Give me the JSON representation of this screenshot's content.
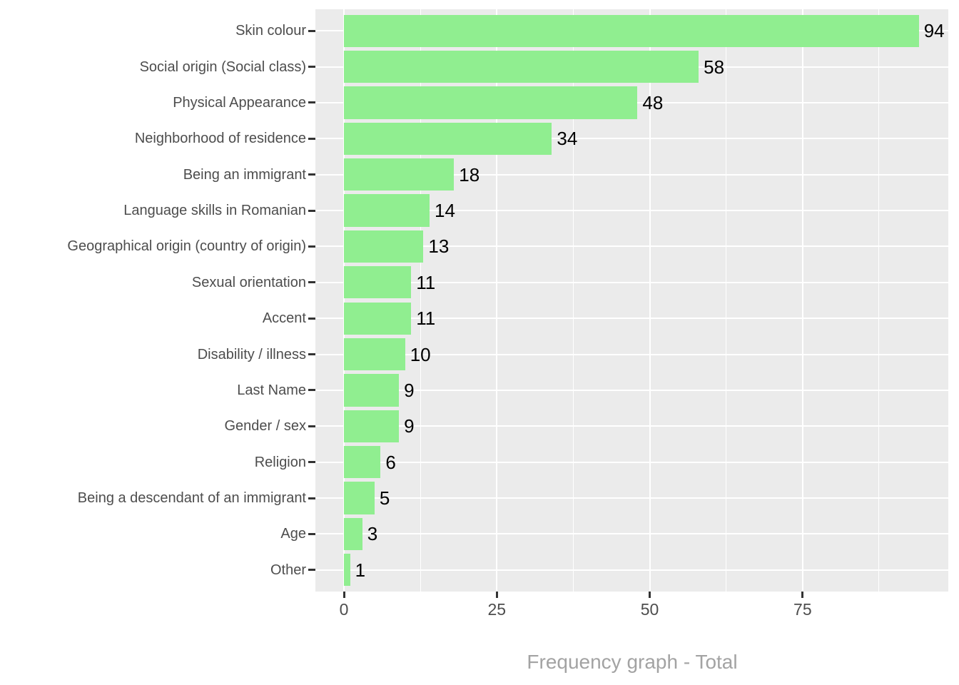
{
  "chart_data": {
    "type": "bar",
    "orientation": "horizontal",
    "title": "Frequency graph - Total",
    "categories": [
      "Skin colour",
      "Social origin (Social class)",
      "Physical Appearance",
      "Neighborhood of residence",
      "Being an immigrant",
      "Language skills in Romanian",
      "Geographical origin (country of origin)",
      "Sexual orientation",
      "Accent",
      "Disability / illness",
      "Last Name",
      "Gender / sex",
      "Religion",
      "Being a descendant of an immigrant",
      "Age",
      "Other"
    ],
    "values": [
      94,
      58,
      48,
      34,
      18,
      14,
      13,
      11,
      11,
      10,
      9,
      9,
      6,
      5,
      3,
      1
    ],
    "value_labels": [
      "94",
      "58",
      "48",
      "34",
      "18",
      "14",
      "13",
      "11",
      "11",
      "10",
      "9",
      "9",
      "6",
      "5",
      "3",
      "1"
    ],
    "xlabel": "Frequency graph - Total",
    "ylabel": "",
    "x_tick_labels": [
      "0",
      "25",
      "50",
      "75"
    ],
    "x_major_ticks": [
      0,
      25,
      50,
      75
    ],
    "x_minor_ticks": [
      12.5,
      37.5,
      62.5,
      87.5
    ],
    "xlim": [
      -4.7,
      98.8
    ],
    "grid": "major and minor vertical, major horizontal at category centers",
    "legend": false,
    "colors": {
      "bar_fill": "#90ee90",
      "panel_background": "#ebebeb",
      "gridline": "#ffffff",
      "axis_text": "#4d4d4d",
      "value_text": "#000000",
      "title_text": "#a3a3a3",
      "tick_mark": "#333333",
      "figure_background": "#ffffff"
    }
  }
}
